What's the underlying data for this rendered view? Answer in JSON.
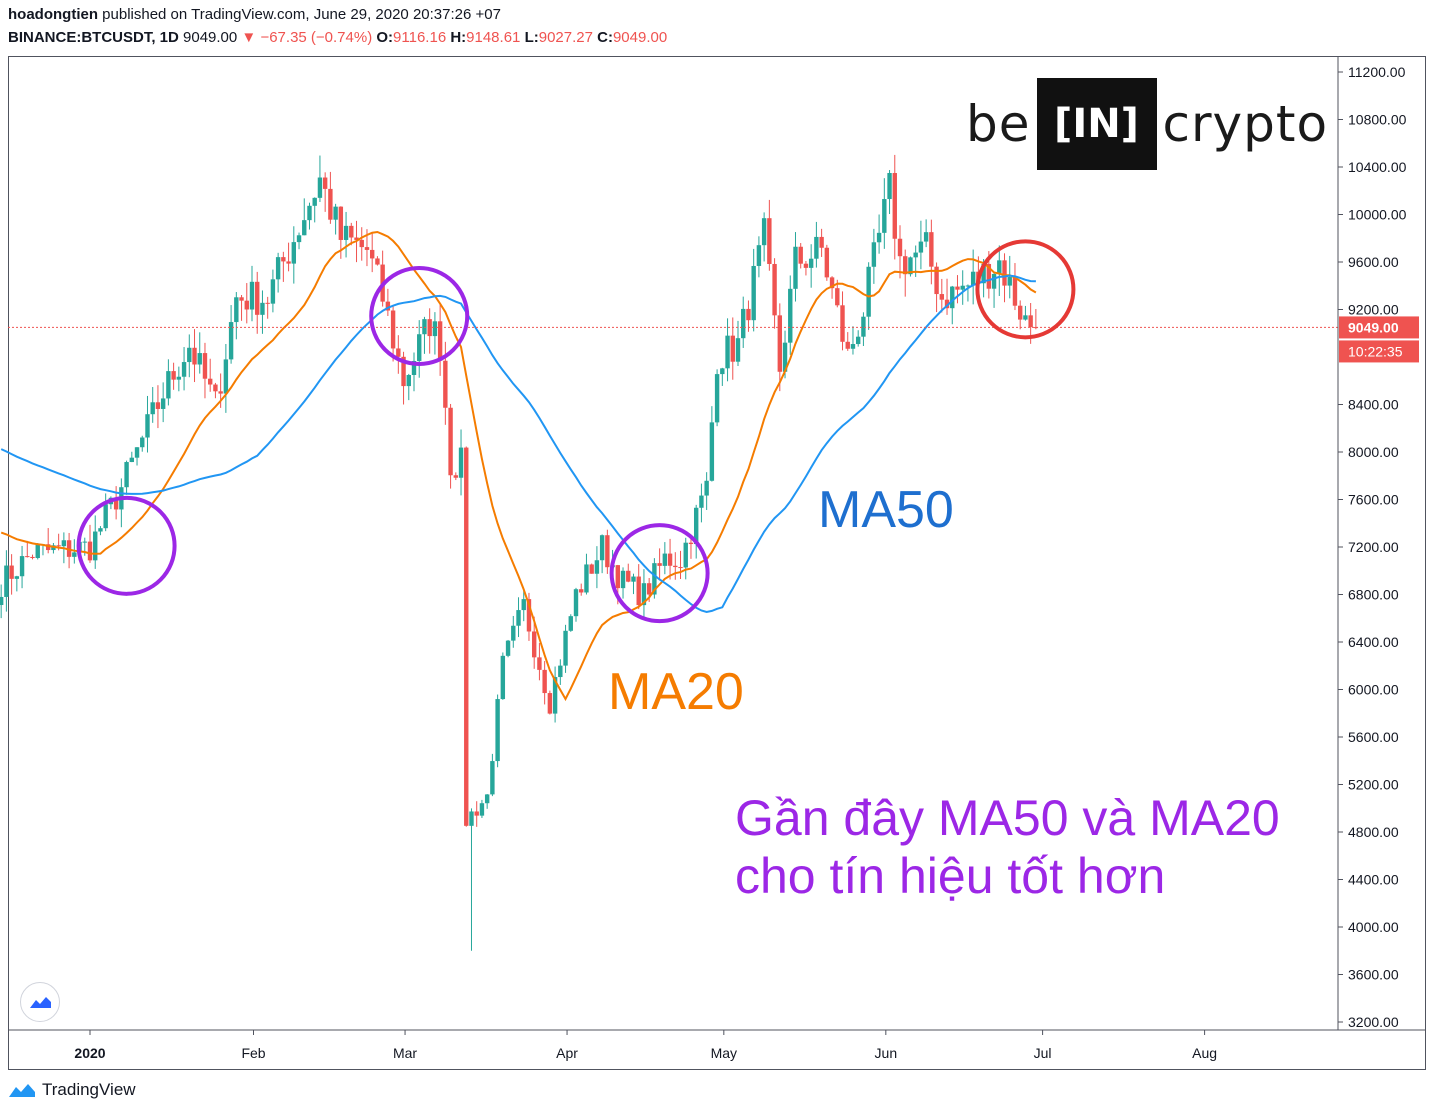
{
  "header": {
    "author": "hoadongtien",
    "published_text": "published on TradingView.com, June 29, 2020 20:37:26 +07",
    "symbol": "BINANCE:BTCUSDT, 1D",
    "last": "9049.00",
    "change": "−67.35 (−0.74%)",
    "o_label": "O:",
    "o": "9116.16",
    "h_label": "H:",
    "h": "9148.61",
    "l_label": "L:",
    "l": "9027.27",
    "c_label": "C:",
    "c": "9049.00"
  },
  "logo": {
    "left": "be",
    "box": "[IN]",
    "right": "crypto"
  },
  "annotations": {
    "ma50": "MA50",
    "ma20": "MA20",
    "main_line1": "Gần đây MA50 và MA20",
    "main_line2": "cho tín hiệu tốt hơn"
  },
  "footer": {
    "brand": "TradingView"
  },
  "colors": {
    "up": "#26a69a",
    "down": "#ef5350",
    "ma20": "#f57c00",
    "ma50": "#2196f3",
    "circle": "#9c27e6",
    "circle_alert": "#e53935",
    "price_line": "#ef5350"
  },
  "icons": {
    "tv_badge": "tradingview-cloud-icon",
    "tv_footer": "tradingview-cloud-icon"
  },
  "chart_data": {
    "type": "candlestick",
    "ylim": [
      3200,
      11200
    ],
    "y_ticks": [
      "11200.00",
      "10800.00",
      "10400.00",
      "10000.00",
      "9600.00",
      "9200.00",
      "8400.00",
      "8000.00",
      "7600.00",
      "7200.00",
      "6800.00",
      "6400.00",
      "6000.00",
      "5600.00",
      "5200.00",
      "4800.00",
      "4400.00",
      "4000.00",
      "3600.00",
      "3200.00"
    ],
    "x_labels": [
      "2020",
      "Feb",
      "Mar",
      "Apr",
      "May",
      "Jun",
      "Jul",
      "Aug"
    ],
    "price_label": "9049.00",
    "countdown_label": "10:22:35",
    "ohlc_approx": {
      "start": "2019-12-14",
      "end": "2020-06-29",
      "anchors": [
        [
          "2019-12-14",
          6900
        ],
        [
          "2019-12-20",
          7150
        ],
        [
          "2019-12-31",
          7200
        ],
        [
          "2020-01-06",
          7700
        ],
        [
          "2020-01-14",
          8500
        ],
        [
          "2020-01-19",
          8900
        ],
        [
          "2020-01-24",
          8400
        ],
        [
          "2020-01-28",
          9300
        ],
        [
          "2020-02-03",
          9300
        ],
        [
          "2020-02-09",
          9900
        ],
        [
          "2020-02-13",
          10300
        ],
        [
          "2020-02-17",
          9800
        ],
        [
          "2020-02-22",
          9700
        ],
        [
          "2020-02-25",
          9300
        ],
        [
          "2020-02-29",
          8600
        ],
        [
          "2020-03-05",
          9100
        ],
        [
          "2020-03-07",
          8900
        ],
        [
          "2020-03-09",
          7900
        ],
        [
          "2020-03-11",
          7900
        ],
        [
          "2020-03-12",
          4900
        ],
        [
          "2020-03-16",
          5100
        ],
        [
          "2020-03-19",
          6200
        ],
        [
          "2020-03-23",
          6700
        ],
        [
          "2020-03-28",
          5900
        ],
        [
          "2020-04-02",
          6800
        ],
        [
          "2020-04-07",
          7200
        ],
        [
          "2020-04-11",
          6900
        ],
        [
          "2020-04-15",
          6800
        ],
        [
          "2020-04-19",
          7100
        ],
        [
          "2020-04-22",
          7100
        ],
        [
          "2020-04-27",
          7700
        ],
        [
          "2020-04-29",
          8800
        ],
        [
          "2020-05-03",
          8900
        ],
        [
          "2020-05-08",
          9800
        ],
        [
          "2020-05-11",
          8700
        ],
        [
          "2020-05-14",
          9600
        ],
        [
          "2020-05-19",
          9700
        ],
        [
          "2020-05-24",
          8800
        ],
        [
          "2020-05-27",
          9200
        ],
        [
          "2020-06-01",
          10200
        ],
        [
          "2020-06-03",
          9600
        ],
        [
          "2020-06-08",
          9700
        ],
        [
          "2020-06-11",
          9300
        ],
        [
          "2020-06-16",
          9400
        ],
        [
          "2020-06-22",
          9600
        ],
        [
          "2020-06-27",
          9100
        ],
        [
          "2020-06-29",
          9049
        ]
      ],
      "crash_low": 3800
    },
    "ma20_end": 9380,
    "ma50_end": 9400
  }
}
